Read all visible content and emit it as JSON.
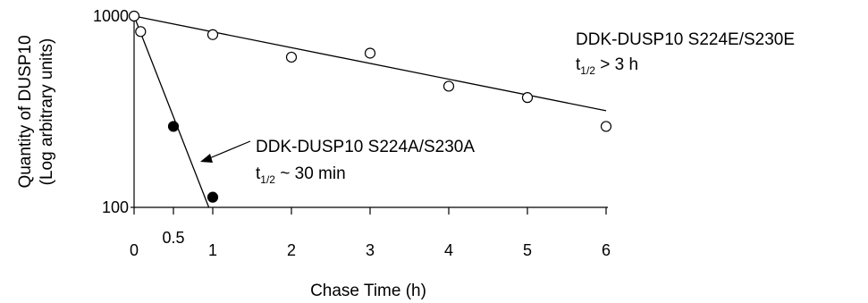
{
  "chart_data": {
    "type": "scatter",
    "xlabel": "Chase Time (h)",
    "ylabel": "Quantity of DUSP10",
    "ylabel_sub": "(Log arbitrary units)",
    "y_scale": "log",
    "xlim": [
      0,
      6
    ],
    "ylim": [
      100,
      1000
    ],
    "x_ticks": [
      0,
      0.5,
      1,
      2,
      3,
      4,
      5,
      6
    ],
    "x_tick_labels": [
      "0",
      "0.5",
      "1",
      "2",
      "3",
      "4",
      "5",
      "6"
    ],
    "y_ticks": [
      100,
      1000
    ],
    "y_tick_labels": [
      "100",
      "1000"
    ],
    "grid": false,
    "series": [
      {
        "name": "DDK-DUSP10 S224E/S230E",
        "marker": "open-circle",
        "color": "#000000",
        "x": [
          0,
          0.083,
          1,
          2,
          3,
          4,
          5,
          6
        ],
        "y": [
          1000,
          830,
          800,
          610,
          640,
          430,
          375,
          265
        ],
        "fit_line": {
          "x": [
            0,
            6
          ],
          "y": [
            1000,
            320
          ]
        },
        "annotation": {
          "line1": "DDK-DUSP10 S224E/S230E",
          "t_main": "t",
          "t_sub": "1/2",
          "t_rest": " > 3 h"
        }
      },
      {
        "name": "DDK-DUSP10 S224A/S230A",
        "marker": "filled-circle",
        "color": "#000000",
        "x": [
          0,
          0.5,
          1
        ],
        "y": [
          1000,
          265,
          113
        ],
        "fit_line": {
          "x": [
            0,
            0.95
          ],
          "y": [
            1000,
            100
          ]
        },
        "annotation": {
          "line1": "DDK-DUSP10 S224A/S230A",
          "t_main": "t",
          "t_sub": "1/2",
          "t_rest": " ~ 30 min"
        }
      }
    ]
  }
}
